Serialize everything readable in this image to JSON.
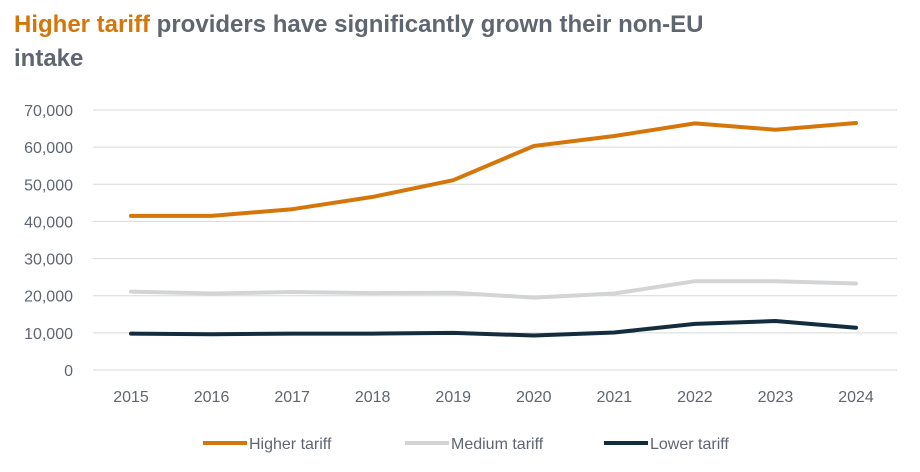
{
  "title_highlight": "Higher tariff",
  "title_rest": " providers have significantly grown their non-EU intake",
  "colors": {
    "higher": "#d5760a",
    "medium": "#d2d4d6",
    "lower": "#132c3e",
    "grid": "#d9d9d9",
    "text": "#5f6670"
  },
  "chart_data": {
    "type": "line",
    "title": "Higher tariff providers have significantly grown their non-EU intake",
    "x": [
      "2015",
      "2016",
      "2017",
      "2018",
      "2019",
      "2020",
      "2021",
      "2022",
      "2023",
      "2024"
    ],
    "ylim": [
      0,
      70000
    ],
    "yticks": [
      "0",
      "10,000",
      "20,000",
      "30,000",
      "40,000",
      "50,000",
      "60,000",
      "70,000"
    ],
    "grid": "horizontal",
    "legend": "bottom-center",
    "series": [
      {
        "name": "Higher tariff",
        "color": "#d5760a",
        "values": [
          41500,
          41500,
          43300,
          46600,
          51100,
          60300,
          63000,
          66400,
          64700,
          66500
        ]
      },
      {
        "name": "Medium tariff",
        "color": "#d2d4d6",
        "values": [
          21100,
          20600,
          21000,
          20700,
          20800,
          19500,
          20600,
          23900,
          23900,
          23300
        ]
      },
      {
        "name": "Lower tariff",
        "color": "#132c3e",
        "values": [
          9800,
          9600,
          9800,
          9800,
          10000,
          9300,
          10100,
          12400,
          13200,
          11400
        ]
      }
    ]
  }
}
